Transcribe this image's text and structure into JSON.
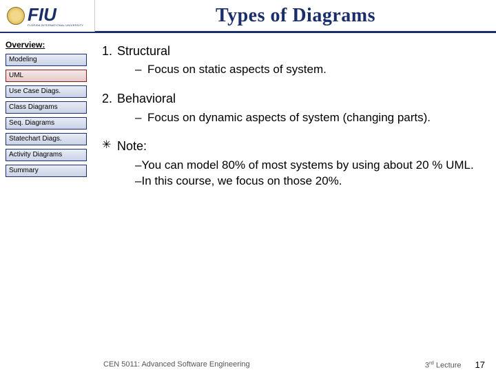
{
  "header": {
    "logo_text": "FIU",
    "logo_sub": "FLORIDA INTERNATIONAL UNIVERSITY",
    "title": "Types of Diagrams"
  },
  "sidebar": {
    "heading": "Overview:",
    "items": [
      {
        "label": "Modeling",
        "active": false
      },
      {
        "label": "UML",
        "active": true
      },
      {
        "label": "Use Case Diags.",
        "active": false
      },
      {
        "label": "Class Diagrams",
        "active": false
      },
      {
        "label": "Seq. Diagrams",
        "active": false
      },
      {
        "label": "Statechart Diags.",
        "active": false
      },
      {
        "label": "Activity Diagrams",
        "active": false
      },
      {
        "label": "Summary",
        "active": false
      }
    ]
  },
  "content": {
    "item1_num": "1.",
    "item1_text": "Structural",
    "item1_sub_dash": "–",
    "item1_sub": "Focus on static aspects of system.",
    "item2_num": "2.",
    "item2_text": "Behavioral",
    "item2_sub_dash": "–",
    "item2_sub": "Focus on dynamic aspects of system (changing parts).",
    "note_bullet": "✳",
    "note_label": "Note:",
    "note_sub1_dash": "–",
    "note_sub1": "You can model 80% of most systems by using about 20 % UML.",
    "note_sub2_dash": "–",
    "note_sub2": "In this course, we focus on those 20%."
  },
  "footer": {
    "course": "CEN 5011: Advanced Software Engineering",
    "lecture_pre": "3",
    "lecture_sup": "rd",
    "lecture_post": " Lecture",
    "page": "17"
  },
  "colors": {
    "brand": "#1a2e6b",
    "nav_bg_top": "#e8ecf5",
    "nav_bg_bot": "#c9d2e6",
    "nav_active_top": "#f5e8e8",
    "nav_active_bot": "#e6c9c9",
    "nav_active_border": "#8b1a1a"
  }
}
